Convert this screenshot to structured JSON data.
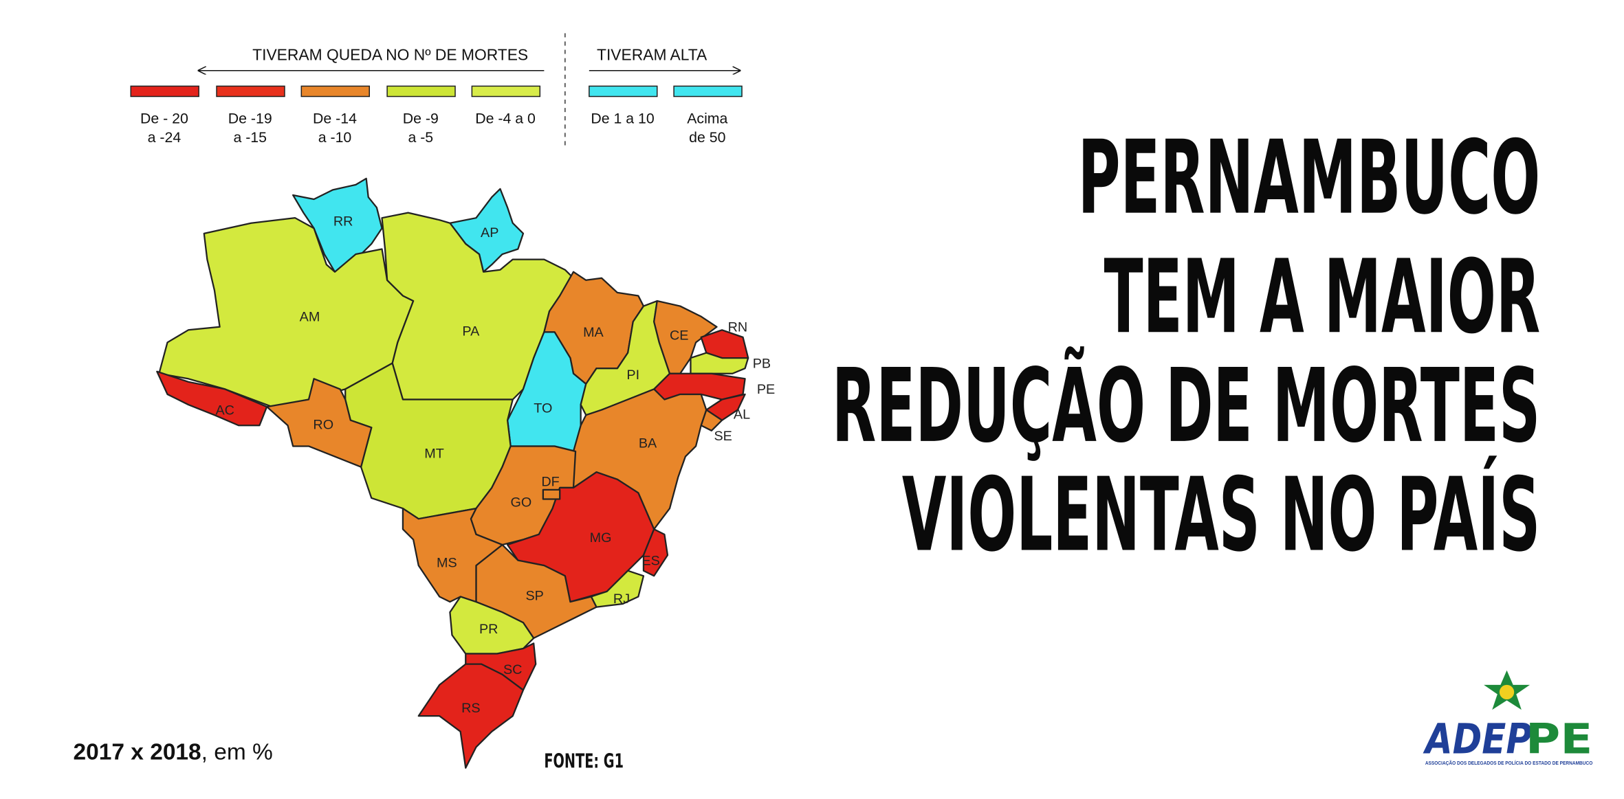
{
  "legend": {
    "decrease_header": "TIVERAM QUEDA NO Nº DE MORTES",
    "increase_header": "TIVERAM ALTA",
    "items": [
      {
        "label": [
          "De - 20",
          "a -24"
        ],
        "color": "#e3231b"
      },
      {
        "label": [
          "De -19",
          "a -15"
        ],
        "color": "#e8311c"
      },
      {
        "label": [
          "De -14",
          "a -10"
        ],
        "color": "#e8862a"
      },
      {
        "label": [
          "De -9",
          "a -5"
        ],
        "color": "#cde536"
      },
      {
        "label": [
          "De -4 a 0"
        ],
        "color": "#d8ec4a"
      },
      {
        "label": [
          "De 1 a 10"
        ],
        "color": "#41e5ef"
      },
      {
        "label": [
          "Acima",
          "de 50"
        ],
        "color": "#41e5ef"
      }
    ]
  },
  "map": {
    "states": [
      {
        "label": "RR",
        "color": "#41e5ef"
      },
      {
        "label": "AP",
        "color": "#41e5ef"
      },
      {
        "label": "AM",
        "color": "#d3e93e"
      },
      {
        "label": "AC",
        "color": "#e3231b"
      },
      {
        "label": "PA",
        "color": "#d3e93e"
      },
      {
        "label": "MA",
        "color": "#e8862a"
      },
      {
        "label": "TO",
        "color": "#41e5ef"
      },
      {
        "label": "PI",
        "color": "#d3e93e"
      },
      {
        "label": "CE",
        "color": "#e8862a"
      },
      {
        "label": "RN",
        "color": "#e3231b"
      },
      {
        "label": "PB",
        "color": "#d3e93e"
      },
      {
        "label": "PE",
        "color": "#e3231b"
      },
      {
        "label": "AL",
        "color": "#e3231b"
      },
      {
        "label": "SE",
        "color": "#e8862a"
      },
      {
        "label": "BA",
        "color": "#e8862a"
      },
      {
        "label": "MT",
        "color": "#cde536"
      },
      {
        "label": "RO",
        "color": "#e8862a"
      },
      {
        "label": "GO",
        "color": "#e8862a"
      },
      {
        "label": "MG",
        "color": "#e3231b"
      },
      {
        "label": "ES",
        "color": "#e3231b"
      },
      {
        "label": "RJ",
        "color": "#d3e93e"
      },
      {
        "label": "SP",
        "color": "#e8862a"
      },
      {
        "label": "MS",
        "color": "#e8862a"
      },
      {
        "label": "PR",
        "color": "#d3e93e"
      },
      {
        "label": "SC",
        "color": "#e3231b"
      },
      {
        "label": "RS",
        "color": "#e3231b"
      },
      {
        "label": "DF",
        "color": "#e8862a"
      }
    ]
  },
  "headline": [
    "PERNAMBUCO",
    "TEM A MAIOR",
    "REDUÇÃO DE MORTES",
    "VIOLENTAS NO PAÍS"
  ],
  "footer": {
    "period": "2017 x 2018",
    "unit": ", em %",
    "source": "FONTE: G1"
  },
  "logo": {
    "name_a": "ADEP",
    "name_b": "PE",
    "tagline": "ASSOCIAÇÃO DOS DELEGADOS DE POLÍCIA DO ESTADO DE PERNAMBUCO"
  }
}
